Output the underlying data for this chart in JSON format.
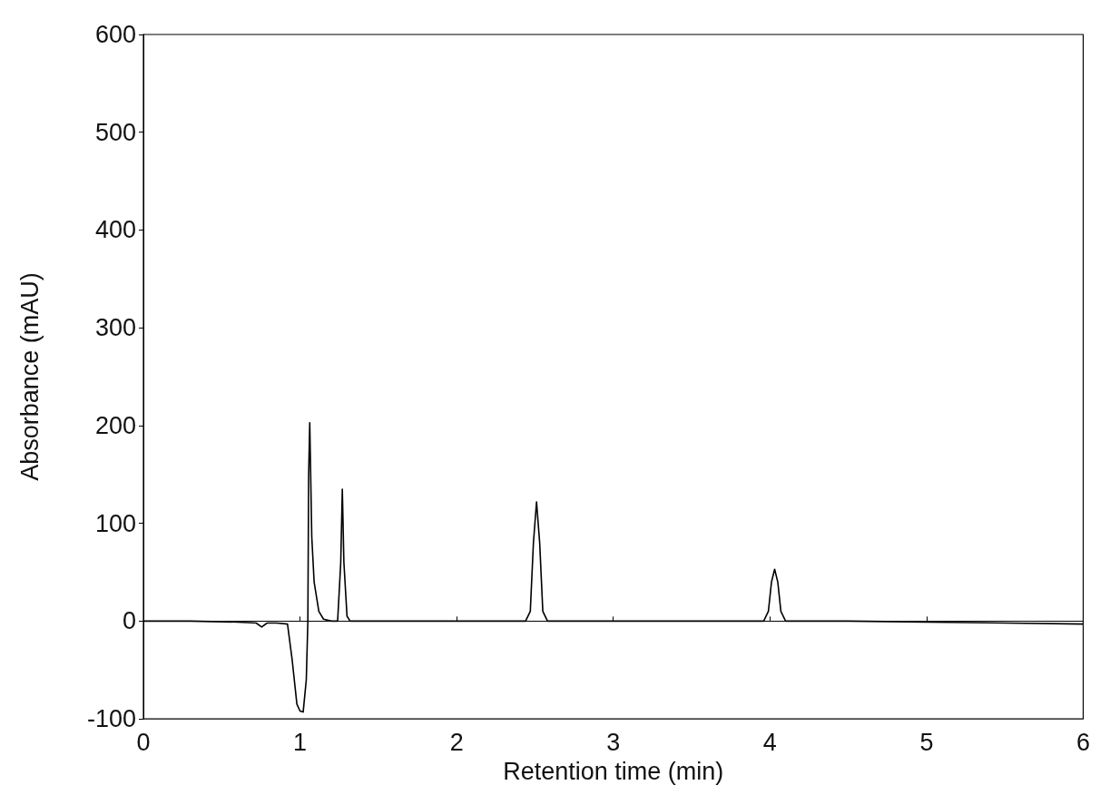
{
  "chart_data": {
    "type": "line",
    "xlabel": "Retention time (min)",
    "ylabel": "Absorbance (mAU)",
    "xlim": [
      0,
      6
    ],
    "xticks": [
      0,
      1,
      2,
      3,
      4,
      5,
      6
    ],
    "ylim": [
      -100,
      600
    ],
    "yticks": [
      -100,
      0,
      100,
      200,
      300,
      400,
      500,
      600
    ],
    "marker": "none",
    "line_style": "solid",
    "series": [
      {
        "color": "#000000",
        "x": [
          0,
          0.3,
          0.6,
          0.72,
          0.755,
          0.79,
          0.85,
          0.92,
          0.95,
          0.98,
          1.0,
          1.02,
          1.04,
          1.05,
          1.055,
          1.062,
          1.068,
          1.075,
          1.09,
          1.12,
          1.15,
          1.2,
          1.24,
          1.26,
          1.27,
          1.28,
          1.3,
          1.32,
          1.5,
          2.0,
          2.44,
          2.47,
          2.49,
          2.51,
          2.53,
          2.55,
          2.58,
          3.0,
          3.5,
          3.96,
          3.99,
          4.01,
          4.03,
          4.05,
          4.07,
          4.1,
          4.5,
          5.0,
          5.5,
          6.0
        ],
        "values": [
          0,
          0,
          -1,
          -2,
          -6,
          -2,
          -2,
          -3,
          -40,
          -85,
          -92,
          -93,
          -60,
          0,
          150,
          203,
          150,
          86,
          40,
          10,
          2,
          0,
          0,
          60,
          135,
          60,
          5,
          0,
          0,
          0,
          0,
          10,
          80,
          122,
          80,
          10,
          0,
          0,
          0,
          0,
          10,
          40,
          53,
          40,
          10,
          0,
          0,
          -1,
          -2,
          -3
        ]
      }
    ]
  }
}
